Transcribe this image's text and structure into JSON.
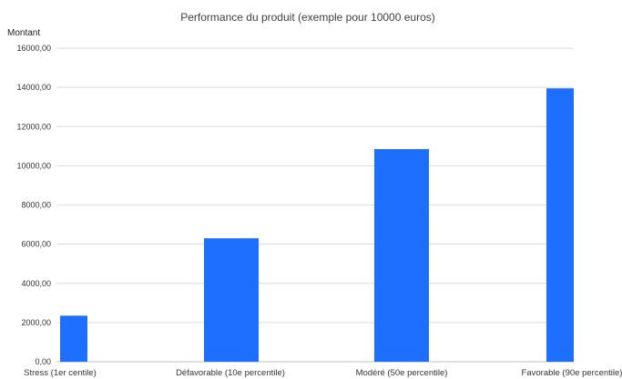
{
  "chart_data": {
    "type": "bar",
    "title": "Performance du produit (exemple pour 10000 euros)",
    "ylabel": "Montant",
    "xlabel": "",
    "categories": [
      "Stress (1er centile)",
      "Défavorable (10e percentile)",
      "Modéré (50e percentile)",
      "Favorable (90e percentile)"
    ],
    "values": [
      2350,
      6300,
      10850,
      13950
    ],
    "ylim": [
      0,
      16000
    ],
    "yticks": [
      0,
      2000,
      4000,
      6000,
      8000,
      10000,
      12000,
      14000,
      16000
    ],
    "ytick_labels": [
      "0,00",
      "2000,00",
      "4000,00",
      "6000,00",
      "8000,00",
      "10000,00",
      "12000,00",
      "14000,00",
      "16000,00"
    ],
    "grid": true,
    "bar_color": "#1f6fff",
    "grid_color": "#d9d9d9"
  }
}
